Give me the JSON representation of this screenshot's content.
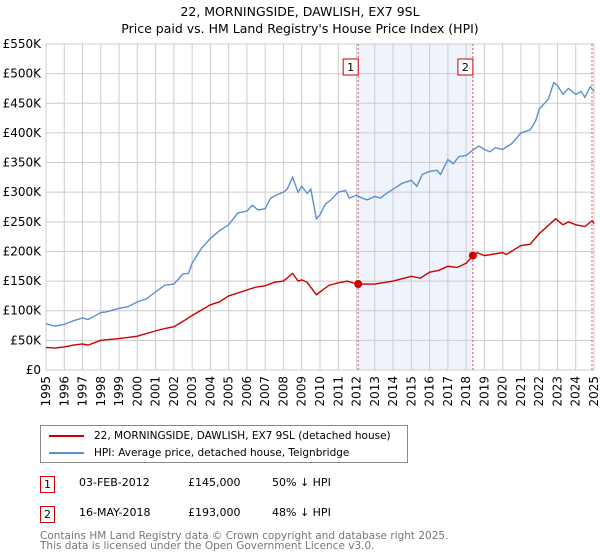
{
  "title": "22, MORNINGSIDE, DAWLISH, EX7 9SL",
  "subtitle": "Price paid vs. HM Land Registry's House Price Index (HPI)",
  "chart_data": {
    "type": "line",
    "title": "22, MORNINGSIDE, DAWLISH, EX7 9SL",
    "subtitle": "Price paid vs. HM Land Registry's House Price Index (HPI)",
    "xlim": [
      1995,
      2025
    ],
    "ylim": [
      0,
      550000
    ],
    "yticks": [
      0,
      50000,
      100000,
      150000,
      200000,
      250000,
      300000,
      350000,
      400000,
      450000,
      500000,
      550000
    ],
    "ytick_labels": [
      "£0",
      "£50K",
      "£100K",
      "£150K",
      "£200K",
      "£250K",
      "£300K",
      "£350K",
      "£400K",
      "£450K",
      "£500K",
      "£550K"
    ],
    "xticks": [
      "1995",
      "1996",
      "1997",
      "1998",
      "1999",
      "2000",
      "2001",
      "2002",
      "2003",
      "2004",
      "2005",
      "2006",
      "2007",
      "2008",
      "2009",
      "2010",
      "2011",
      "2012",
      "2013",
      "2014",
      "2015",
      "2016",
      "2017",
      "2018",
      "2019",
      "2020",
      "2021",
      "2022",
      "2023",
      "2024",
      "2025"
    ],
    "grid": true,
    "series": [
      {
        "name": "22, MORNINGSIDE, DAWLISH, EX7 9SL (detached house)",
        "color": "#cc0000",
        "x": [
          1995,
          1995.5,
          1996,
          1996.5,
          1997,
          1997.3,
          1998,
          1999,
          2000,
          2001,
          2001.5,
          2002,
          2002.5,
          2003,
          2004,
          2004.5,
          2005,
          2006,
          2006.5,
          2007,
          2007.5,
          2008,
          2008.5,
          2008.8,
          2009,
          2009.3,
          2009.8,
          2010.5,
          2011,
          2011.5,
          2012,
          2012.09,
          2013,
          2014,
          2015,
          2015.5,
          2016,
          2016.5,
          2017,
          2017.5,
          2018,
          2018.37,
          2018.6,
          2019,
          2020,
          2020.2,
          2021,
          2021.5,
          2022,
          2022.9,
          2023.3,
          2023.6,
          2024,
          2024.5,
          2024.9,
          2025
        ],
        "y": [
          38000,
          37000,
          39000,
          42000,
          44000,
          42000,
          50000,
          53000,
          57000,
          66000,
          70000,
          73000,
          82000,
          92000,
          110000,
          115000,
          125000,
          135000,
          140000,
          142000,
          148000,
          150000,
          163000,
          150000,
          152000,
          148000,
          127000,
          143000,
          147000,
          150000,
          145000,
          145000,
          145000,
          150000,
          158000,
          155000,
          165000,
          168000,
          175000,
          173000,
          180000,
          193000,
          198000,
          193000,
          198000,
          195000,
          210000,
          212000,
          230000,
          255000,
          245000,
          250000,
          245000,
          242000,
          252000,
          247000
        ]
      },
      {
        "name": "HPI: Average price, detached house, Teignbridge",
        "color": "#5b8fd0",
        "x": [
          1995,
          1995.5,
          1996,
          1996.5,
          1997,
          1997.3,
          1998,
          1998.3,
          1999,
          1999.5,
          2000,
          2000.5,
          2001,
          2001.5,
          2002,
          2002.5,
          2002.8,
          2003,
          2003.5,
          2004,
          2004.5,
          2005,
          2005.5,
          2006,
          2006.3,
          2006.6,
          2007,
          2007.3,
          2007.6,
          2008,
          2008.2,
          2008.5,
          2008.8,
          2009,
          2009.3,
          2009.5,
          2009.8,
          2010,
          2010.3,
          2010.6,
          2011,
          2011.4,
          2011.6,
          2012,
          2012.3,
          2012.6,
          2013,
          2013.3,
          2013.6,
          2014,
          2014.5,
          2015,
          2015.3,
          2015.6,
          2016,
          2016.4,
          2016.6,
          2017,
          2017.3,
          2017.6,
          2018,
          2018.4,
          2018.7,
          2019,
          2019.3,
          2019.6,
          2020,
          2020.5,
          2021,
          2021.5,
          2021.8,
          2022,
          2022.5,
          2022.8,
          2023,
          2023.3,
          2023.6,
          2024,
          2024.3,
          2024.5,
          2024.8,
          2025
        ],
        "y": [
          78000,
          74000,
          77000,
          83000,
          88000,
          85000,
          97000,
          98000,
          104000,
          107000,
          115000,
          120000,
          132000,
          143000,
          145000,
          162000,
          163000,
          180000,
          205000,
          222000,
          235000,
          245000,
          265000,
          268000,
          278000,
          270000,
          272000,
          290000,
          295000,
          300000,
          305000,
          325000,
          300000,
          310000,
          298000,
          305000,
          255000,
          262000,
          280000,
          287000,
          300000,
          303000,
          290000,
          295000,
          290000,
          287000,
          293000,
          290000,
          297000,
          305000,
          315000,
          320000,
          310000,
          330000,
          335000,
          337000,
          330000,
          355000,
          348000,
          360000,
          362000,
          372000,
          378000,
          372000,
          368000,
          375000,
          372000,
          382000,
          400000,
          405000,
          420000,
          440000,
          457000,
          485000,
          480000,
          465000,
          475000,
          465000,
          470000,
          460000,
          478000,
          470000
        ]
      }
    ],
    "sales": [
      {
        "label": "1",
        "x": 2012.09,
        "price": 145000
      },
      {
        "label": "2",
        "x": 2018.37,
        "price": 193000
      }
    ],
    "shaded_range": [
      2012.09,
      2018.37
    ]
  },
  "legend": {
    "items": [
      "22, MORNINGSIDE, DAWLISH, EX7 9SL (detached house)",
      "HPI: Average price, detached house, Teignbridge"
    ]
  },
  "transactions": [
    {
      "num": "1",
      "date": "03-FEB-2012",
      "price": "£145,000",
      "hpi": "50% ↓ HPI"
    },
    {
      "num": "2",
      "date": "16-MAY-2018",
      "price": "£193,000",
      "hpi": "48% ↓ HPI"
    }
  ],
  "footer": {
    "line1": "Contains HM Land Registry data © Crown copyright and database right 2025.",
    "line2": "This data is licensed under the Open Government Licence v3.0."
  }
}
